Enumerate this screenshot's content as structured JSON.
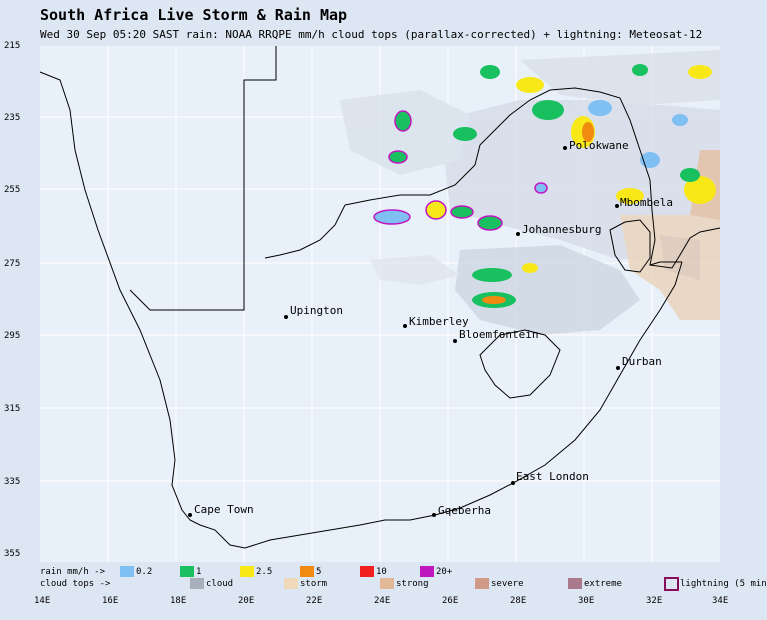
{
  "header": {
    "title": "South Africa Live Storm & Rain Map",
    "subtitle": "Wed 30 Sep 05:20 SAST   rain: NOAA RRQPE mm/h   cloud tops (parallax-corrected) + lightning: Meteosat-12"
  },
  "axes": {
    "lat_labels": [
      "215",
      "235",
      "255",
      "275",
      "295",
      "315",
      "335",
      "355"
    ],
    "lon_labels": [
      "14E",
      "16E",
      "18E",
      "20E",
      "22E",
      "24E",
      "26E",
      "28E",
      "30E",
      "32E",
      "34E"
    ]
  },
  "cities": [
    {
      "name": "Polokwane"
    },
    {
      "name": "Mbombela"
    },
    {
      "name": "Johannesburg"
    },
    {
      "name": "Upington"
    },
    {
      "name": "Kimberley"
    },
    {
      "name": "Bloemfontein"
    },
    {
      "name": "Durban"
    },
    {
      "name": "East London"
    },
    {
      "name": "Cape Town"
    },
    {
      "name": "Gqeberha"
    }
  ],
  "legend": {
    "rain_caption": "rain mm/h ->",
    "cloud_caption": "cloud tops ->",
    "rain": [
      {
        "label": "0.2",
        "color": "#7fbff2"
      },
      {
        "label": "1",
        "color": "#18c060"
      },
      {
        "label": "2.5",
        "color": "#f8e818"
      },
      {
        "label": "5",
        "color": "#f08a10"
      },
      {
        "label": "10",
        "color": "#f02020"
      },
      {
        "label": "20+",
        "color": "#c018c0"
      }
    ],
    "cloud": [
      {
        "label": "cloud",
        "color": "#a9b0bc"
      },
      {
        "label": "storm",
        "color": "#efd9b8"
      },
      {
        "label": "strong",
        "color": "#e2b896"
      },
      {
        "label": "severe",
        "color": "#d19a88"
      },
      {
        "label": "extreme",
        "color": "#a87a8c"
      },
      {
        "label": "lightning (5 min",
        "color": "#8b0a5a"
      }
    ]
  }
}
